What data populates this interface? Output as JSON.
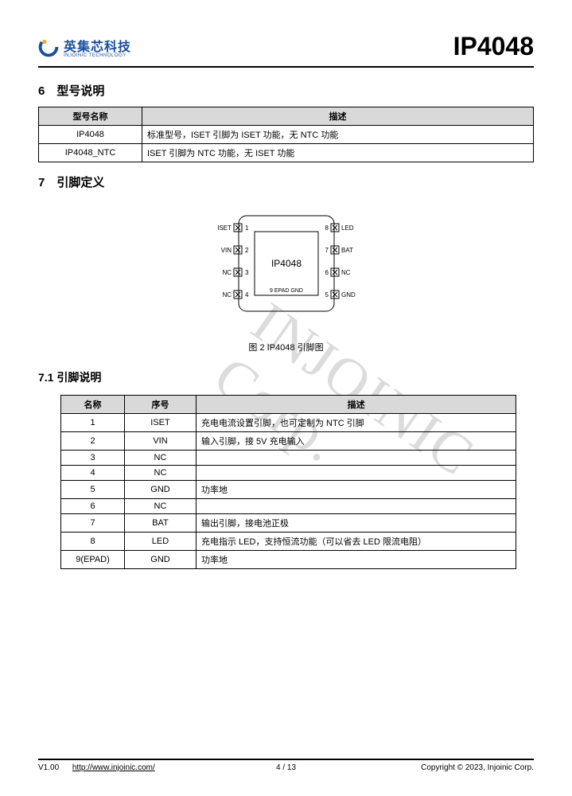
{
  "header": {
    "logo_cn": "英集芯科技",
    "logo_en": "INJOINIC TECHNOLOGY",
    "part_number": "IP4048",
    "logo_colors": {
      "primary": "#1a4fa0",
      "accent": "#f5a623"
    }
  },
  "section6": {
    "title": "6　型号说明",
    "table": {
      "columns": [
        "型号名称",
        "描述"
      ],
      "rows": [
        [
          "IP4048",
          "标准型号，ISET 引脚为 ISET 功能，无 NTC 功能"
        ],
        [
          "IP4048_NTC",
          "ISET 引脚为 NTC 功能，无 ISET 功能"
        ]
      ]
    }
  },
  "section7": {
    "title": "7　引脚定义",
    "chip": {
      "label": "IP4048",
      "epad_label": "9 EPAD GND",
      "left_pins": [
        {
          "n": "1",
          "name": "ISET"
        },
        {
          "n": "2",
          "name": "VIN"
        },
        {
          "n": "3",
          "name": "NC"
        },
        {
          "n": "4",
          "name": "NC"
        }
      ],
      "right_pins": [
        {
          "n": "8",
          "name": "LED"
        },
        {
          "n": "7",
          "name": "BAT"
        },
        {
          "n": "6",
          "name": "NC"
        },
        {
          "n": "5",
          "name": "GND"
        }
      ],
      "stroke": "#000000",
      "fontsize": 8
    },
    "caption": "图 2 IP4048 引脚图",
    "sub": {
      "title": "7.1 引脚说明",
      "table": {
        "columns": [
          "名称",
          "序号",
          "描述"
        ],
        "rows": [
          [
            "1",
            "ISET",
            "充电电流设置引脚，也可定制为 NTC 引脚"
          ],
          [
            "2",
            "VIN",
            "输入引脚，接 5V 充电输入"
          ],
          [
            "3",
            "NC",
            ""
          ],
          [
            "4",
            "NC",
            ""
          ],
          [
            "5",
            "GND",
            "功率地"
          ],
          [
            "6",
            "NC",
            ""
          ],
          [
            "7",
            "BAT",
            "输出引脚，接电池正极"
          ],
          [
            "8",
            "LED",
            "充电指示 LED，支持恒流功能（可以省去 LED 限流电阻）"
          ],
          [
            "9(EPAD)",
            "GND",
            "功率地"
          ]
        ]
      }
    }
  },
  "watermark": "INJOINIC Corp.",
  "footer": {
    "version": "V1.00",
    "url": "http://www.injoinic.com/",
    "page": "4 / 13",
    "copyright": "Copyright © 2023, Injoinic Corp."
  }
}
